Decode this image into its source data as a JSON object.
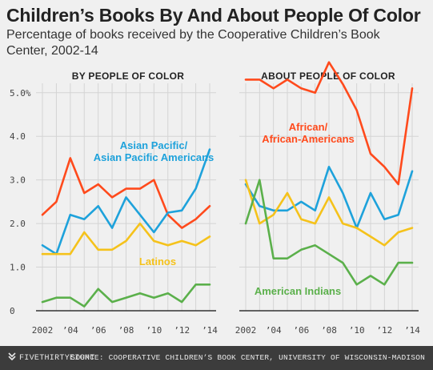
{
  "title": "Children’s Books By And About People Of Color",
  "subtitle": "Percentage of books received by the Cooperative Children’s Book Center, 2002-14",
  "footer": {
    "logo_text": "FIVETHIRTYEIGHT",
    "source": "SOURCE: COOPERATIVE CHILDREN’S BOOK CENTER, UNIVERSITY OF WISCONSIN-MADISON"
  },
  "colors": {
    "african": "#ff4a1c",
    "asian": "#1ea2db",
    "latino": "#f5c21b",
    "american_indian": "#5bb04b",
    "grid": "#d4d4d4",
    "baseline": "#333333"
  },
  "chart_data": [
    {
      "type": "line",
      "title": "BY PEOPLE OF COLOR",
      "x": [
        2002,
        2003,
        2004,
        2005,
        2006,
        2007,
        2008,
        2009,
        2010,
        2011,
        2012,
        2013,
        2014
      ],
      "x_tick_labels": [
        "2002",
        "’04",
        "’06",
        "’08",
        "’10",
        "’12",
        "’14"
      ],
      "x_tick_values": [
        2002,
        2004,
        2006,
        2008,
        2010,
        2012,
        2014
      ],
      "y_tick_labels": [
        "5.0%",
        "4.0",
        "3.0",
        "2.0",
        "1.0",
        "0"
      ],
      "y_tick_values": [
        5,
        4,
        3,
        2,
        1,
        0
      ],
      "ylim": [
        0,
        5.4
      ],
      "series": [
        {
          "key": "african",
          "values": [
            2.2,
            2.5,
            3.5,
            2.7,
            2.9,
            2.6,
            2.8,
            2.8,
            3.0,
            2.2,
            1.9,
            2.1,
            2.4
          ]
        },
        {
          "key": "asian",
          "name": "Asian Pacific/\nAsian Pacific Americans",
          "values": [
            1.5,
            1.3,
            2.2,
            2.1,
            2.4,
            1.9,
            2.6,
            2.2,
            1.8,
            2.25,
            2.3,
            2.8,
            3.7
          ]
        },
        {
          "key": "latino",
          "name": "Latinos",
          "values": [
            1.3,
            1.3,
            1.3,
            1.8,
            1.4,
            1.4,
            1.6,
            2.0,
            1.6,
            1.5,
            1.6,
            1.5,
            1.7
          ]
        },
        {
          "key": "american_indian",
          "values": [
            0.2,
            0.3,
            0.3,
            0.1,
            0.5,
            0.2,
            0.3,
            0.4,
            0.3,
            0.4,
            0.2,
            0.6,
            0.6
          ]
        }
      ]
    },
    {
      "type": "line",
      "title": "ABOUT PEOPLE OF COLOR",
      "x": [
        2002,
        2003,
        2004,
        2005,
        2006,
        2007,
        2008,
        2009,
        2010,
        2011,
        2012,
        2013,
        2014
      ],
      "x_tick_labels": [
        "2002",
        "’04",
        "’06",
        "’08",
        "’10",
        "’12",
        "’14"
      ],
      "x_tick_values": [
        2002,
        2004,
        2006,
        2008,
        2010,
        2012,
        2014
      ],
      "ylim": [
        0,
        5.4
      ],
      "series": [
        {
          "key": "african",
          "name": "African/\nAfrican-Americans",
          "values": [
            5.3,
            5.3,
            5.1,
            5.3,
            5.1,
            5.0,
            5.7,
            5.2,
            4.6,
            3.6,
            3.3,
            2.9,
            5.1
          ]
        },
        {
          "key": "asian",
          "values": [
            2.9,
            2.4,
            2.3,
            2.3,
            2.5,
            2.3,
            3.3,
            2.7,
            1.9,
            2.7,
            2.1,
            2.2,
            3.2
          ]
        },
        {
          "key": "latino",
          "values": [
            3.0,
            2.0,
            2.2,
            2.7,
            2.1,
            2.0,
            2.6,
            2.0,
            1.9,
            1.7,
            1.5,
            1.8,
            1.9
          ]
        },
        {
          "key": "american_indian",
          "name": "American Indians",
          "values": [
            2.0,
            3.0,
            1.2,
            1.2,
            1.4,
            1.5,
            1.3,
            1.1,
            0.6,
            0.8,
            0.6,
            1.1,
            1.1
          ]
        }
      ]
    }
  ]
}
